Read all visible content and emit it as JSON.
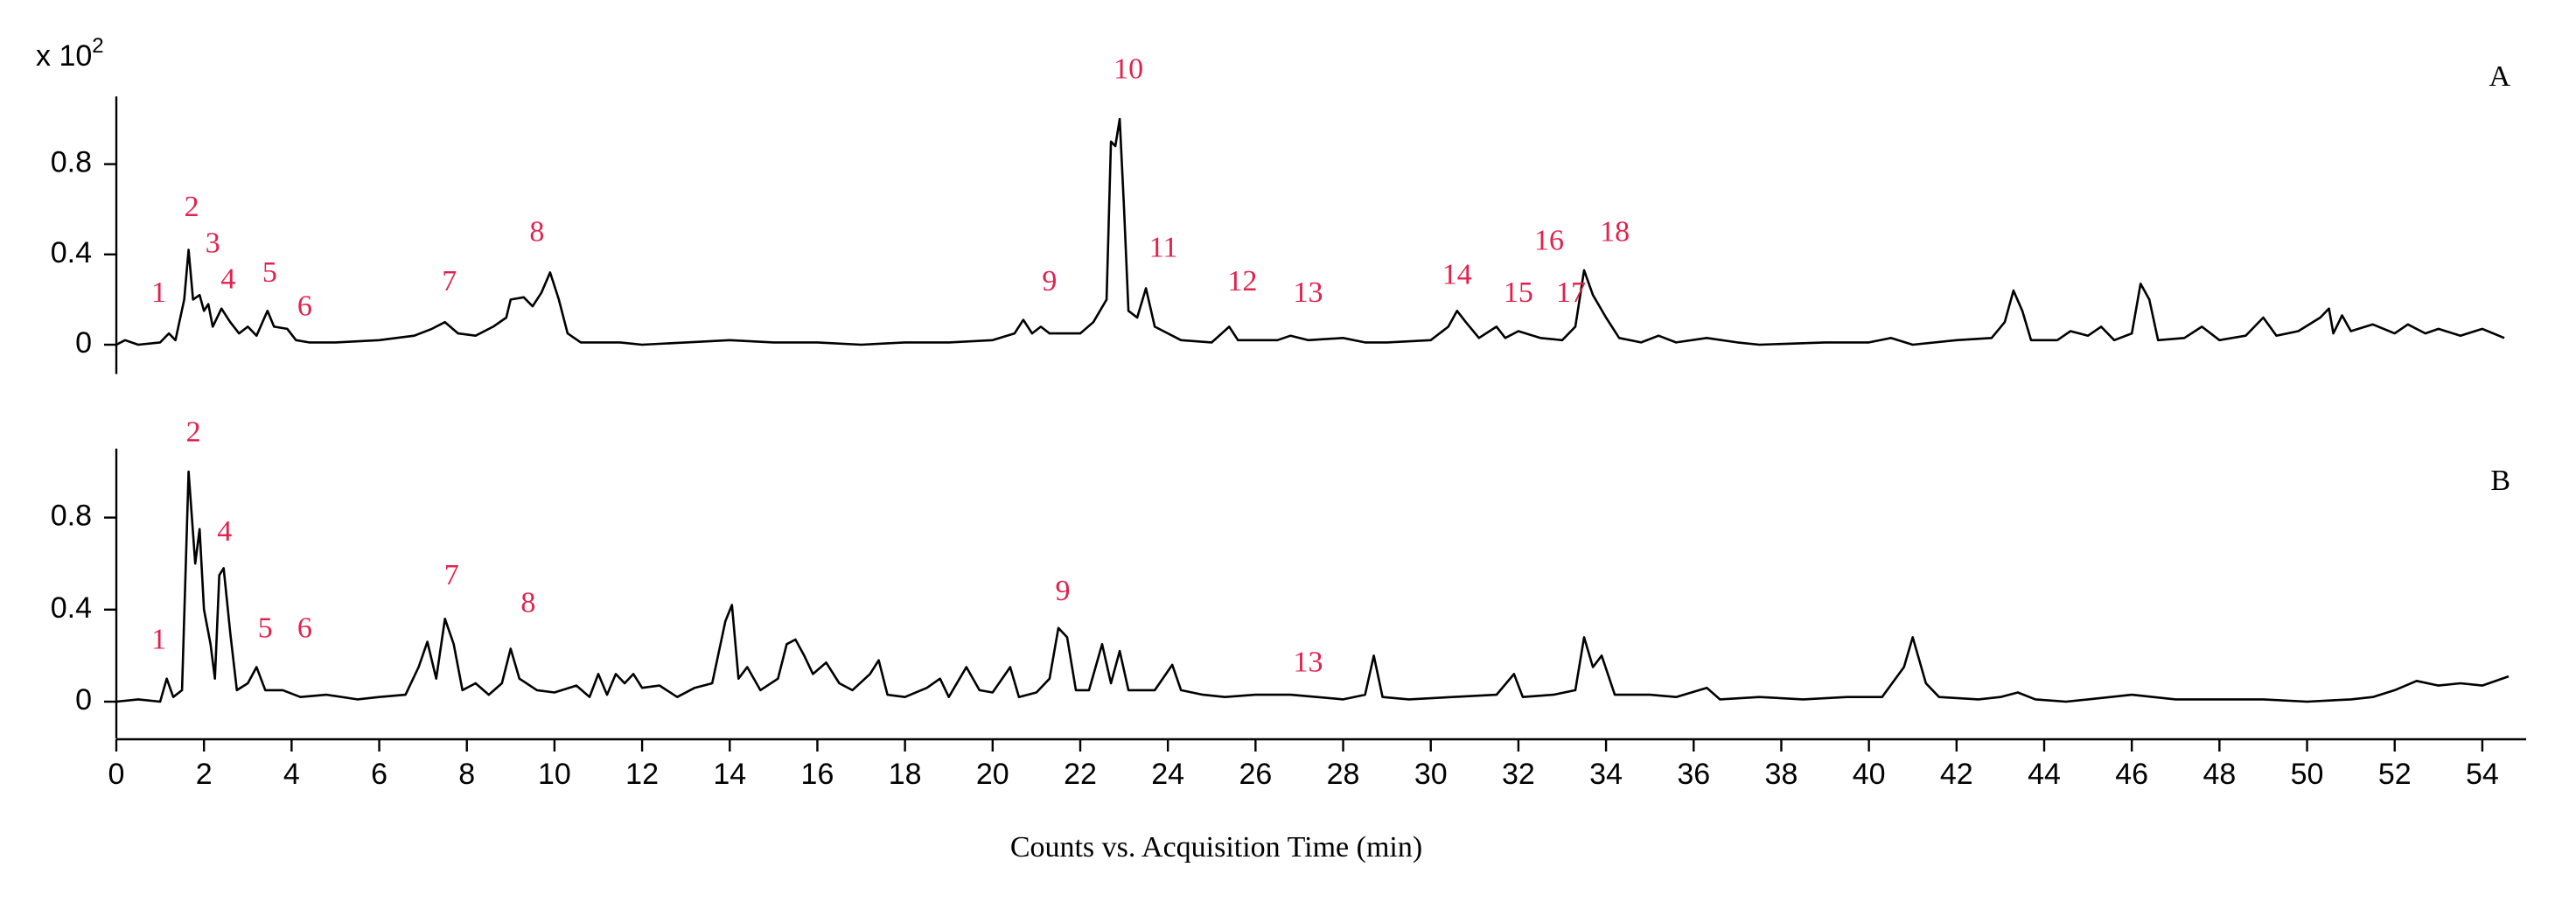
{
  "chart_data": [
    {
      "type": "line",
      "panel_label": "A",
      "y_scale_label": "x 10",
      "y_scale_exponent": "2",
      "color": "#000000",
      "annotation_color": "#e0234e",
      "xlim": [
        0,
        55
      ],
      "ylim": [
        -0.13,
        1.1
      ],
      "yticks": [
        0,
        0.4,
        0.8
      ],
      "x": [
        0,
        0.2,
        0.5,
        1.0,
        1.2,
        1.35,
        1.55,
        1.65,
        1.75,
        1.9,
        2.0,
        2.1,
        2.2,
        2.4,
        2.6,
        2.8,
        3.0,
        3.2,
        3.45,
        3.6,
        3.9,
        4.1,
        4.4,
        5,
        6,
        6.8,
        7.2,
        7.5,
        7.8,
        8.2,
        8.6,
        8.9,
        9.0,
        9.3,
        9.5,
        9.7,
        9.9,
        10.1,
        10.3,
        10.6,
        11.5,
        12,
        13,
        14,
        15,
        16,
        17,
        18,
        19,
        20,
        20.5,
        20.7,
        20.9,
        21.1,
        21.3,
        21.6,
        22,
        22.3,
        22.6,
        22.7,
        22.8,
        22.9,
        23.0,
        23.1,
        23.3,
        23.5,
        23.7,
        24,
        24.3,
        25,
        25.4,
        25.6,
        26.5,
        26.8,
        27.2,
        28,
        28.5,
        29,
        30,
        30.4,
        30.6,
        30.8,
        31.1,
        31.5,
        31.7,
        32,
        32.5,
        33,
        33.3,
        33.5,
        33.7,
        34,
        34.3,
        34.8,
        35.2,
        35.6,
        36.3,
        37,
        37.5,
        39,
        40,
        40.5,
        41,
        42,
        42.8,
        43.1,
        43.3,
        43.5,
        43.7,
        44.3,
        44.6,
        45,
        45.3,
        45.6,
        46,
        46.2,
        46.4,
        46.6,
        47.2,
        47.6,
        48,
        48.6,
        49,
        49.3,
        49.8,
        50.3,
        50.5,
        50.6,
        50.8,
        51,
        51.5,
        52,
        52.3,
        52.7,
        53,
        53.5,
        54,
        54.5
      ],
      "values": [
        0,
        0.02,
        0,
        0.01,
        0.05,
        0.02,
        0.2,
        0.42,
        0.2,
        0.22,
        0.15,
        0.18,
        0.08,
        0.16,
        0.1,
        0.05,
        0.08,
        0.04,
        0.15,
        0.08,
        0.07,
        0.02,
        0.01,
        0.01,
        0.02,
        0.04,
        0.07,
        0.1,
        0.05,
        0.04,
        0.08,
        0.12,
        0.2,
        0.21,
        0.17,
        0.23,
        0.32,
        0.2,
        0.05,
        0.01,
        0.01,
        0,
        0.01,
        0.02,
        0.01,
        0.01,
        0,
        0.01,
        0.01,
        0.02,
        0.05,
        0.11,
        0.05,
        0.08,
        0.05,
        0.05,
        0.05,
        0.1,
        0.2,
        0.9,
        0.88,
        1.0,
        0.6,
        0.15,
        0.12,
        0.25,
        0.08,
        0.05,
        0.02,
        0.01,
        0.08,
        0.02,
        0.02,
        0.04,
        0.02,
        0.03,
        0.01,
        0.01,
        0.02,
        0.08,
        0.15,
        0.1,
        0.03,
        0.08,
        0.03,
        0.06,
        0.03,
        0.02,
        0.08,
        0.33,
        0.22,
        0.12,
        0.03,
        0.01,
        0.04,
        0.01,
        0.03,
        0.01,
        0,
        0.01,
        0.01,
        0.03,
        0,
        0.02,
        0.03,
        0.1,
        0.24,
        0.15,
        0.02,
        0.02,
        0.06,
        0.04,
        0.08,
        0.02,
        0.05,
        0.27,
        0.2,
        0.02,
        0.03,
        0.08,
        0.02,
        0.04,
        0.12,
        0.04,
        0.06,
        0.12,
        0.16,
        0.05,
        0.13,
        0.06,
        0.09,
        0.05,
        0.09,
        0.05,
        0.07,
        0.04,
        0.07,
        0.03
      ],
      "annotations": [
        {
          "label": "1",
          "x": 0.97,
          "y": 0.22
        },
        {
          "label": "2",
          "x": 1.72,
          "y": 0.6
        },
        {
          "label": "3",
          "x": 2.2,
          "y": 0.44
        },
        {
          "label": "4",
          "x": 2.55,
          "y": 0.28
        },
        {
          "label": "5",
          "x": 3.5,
          "y": 0.31
        },
        {
          "label": "6",
          "x": 4.3,
          "y": 0.16
        },
        {
          "label": "7",
          "x": 7.6,
          "y": 0.27
        },
        {
          "label": "8",
          "x": 9.6,
          "y": 0.49
        },
        {
          "label": "9",
          "x": 21.3,
          "y": 0.27
        },
        {
          "label": "10",
          "x": 23.1,
          "y": 1.21
        },
        {
          "label": "11",
          "x": 23.9,
          "y": 0.42
        },
        {
          "label": "12",
          "x": 25.7,
          "y": 0.27
        },
        {
          "label": "13",
          "x": 27.2,
          "y": 0.22
        },
        {
          "label": "14",
          "x": 30.6,
          "y": 0.3
        },
        {
          "label": "15",
          "x": 32.0,
          "y": 0.22
        },
        {
          "label": "16",
          "x": 32.7,
          "y": 0.45
        },
        {
          "label": "17",
          "x": 33.2,
          "y": 0.22
        },
        {
          "label": "18",
          "x": 34.2,
          "y": 0.49
        }
      ]
    },
    {
      "type": "line",
      "panel_label": "B",
      "color": "#000000",
      "annotation_color": "#e0234e",
      "xlim": [
        0,
        55
      ],
      "ylim": [
        -0.16,
        1.1
      ],
      "yticks": [
        0,
        0.4,
        0.8
      ],
      "xticks": [
        0,
        2,
        4,
        6,
        8,
        10,
        12,
        14,
        16,
        18,
        20,
        22,
        24,
        26,
        28,
        30,
        32,
        34,
        36,
        38,
        40,
        42,
        44,
        46,
        48,
        50,
        52,
        54
      ],
      "xlabel": "Counts vs. Acquisition Time (min)",
      "x": [
        0,
        0.5,
        1.0,
        1.15,
        1.3,
        1.5,
        1.65,
        1.8,
        1.9,
        2.0,
        2.15,
        2.25,
        2.35,
        2.45,
        2.6,
        2.75,
        3.0,
        3.2,
        3.4,
        3.8,
        4.2,
        4.8,
        5.5,
        6,
        6.6,
        6.9,
        7.1,
        7.3,
        7.5,
        7.7,
        7.9,
        8.2,
        8.5,
        8.8,
        9.0,
        9.2,
        9.6,
        10,
        10.5,
        10.8,
        11,
        11.2,
        11.4,
        11.6,
        11.8,
        12,
        12.4,
        12.8,
        13.2,
        13.6,
        13.9,
        14.05,
        14.2,
        14.4,
        14.7,
        15.1,
        15.3,
        15.5,
        15.7,
        15.9,
        16.2,
        16.5,
        16.8,
        17.2,
        17.4,
        17.6,
        18,
        18.5,
        18.8,
        19.0,
        19.4,
        19.7,
        20,
        20.4,
        20.6,
        21,
        21.3,
        21.5,
        21.7,
        21.9,
        22.2,
        22.5,
        22.7,
        22.9,
        23.1,
        23.7,
        24.1,
        24.3,
        24.8,
        25.3,
        26,
        26.8,
        27.4,
        28,
        28.5,
        28.7,
        28.9,
        29.5,
        30.5,
        31.5,
        31.9,
        32.1,
        32.8,
        33.3,
        33.5,
        33.7,
        33.9,
        34.2,
        35,
        35.6,
        36.3,
        36.6,
        37.5,
        38.5,
        39.5,
        40.3,
        40.8,
        41,
        41.3,
        41.6,
        42.5,
        43,
        43.4,
        43.8,
        44.5,
        45,
        46,
        47,
        48,
        49,
        50,
        51,
        51.5,
        52,
        52.5,
        53,
        53.5,
        54,
        54.6
      ],
      "values": [
        0,
        0.01,
        0,
        0.1,
        0.02,
        0.05,
        1.0,
        0.6,
        0.75,
        0.4,
        0.25,
        0.1,
        0.55,
        0.58,
        0.3,
        0.05,
        0.08,
        0.15,
        0.05,
        0.05,
        0.02,
        0.03,
        0.01,
        0.02,
        0.03,
        0.15,
        0.26,
        0.1,
        0.36,
        0.25,
        0.05,
        0.08,
        0.03,
        0.08,
        0.23,
        0.1,
        0.05,
        0.04,
        0.07,
        0.02,
        0.12,
        0.03,
        0.12,
        0.08,
        0.12,
        0.06,
        0.07,
        0.02,
        0.06,
        0.08,
        0.35,
        0.42,
        0.1,
        0.15,
        0.05,
        0.1,
        0.25,
        0.27,
        0.2,
        0.12,
        0.17,
        0.08,
        0.05,
        0.12,
        0.18,
        0.03,
        0.02,
        0.06,
        0.1,
        0.02,
        0.15,
        0.05,
        0.04,
        0.15,
        0.02,
        0.04,
        0.1,
        0.32,
        0.28,
        0.05,
        0.05,
        0.25,
        0.08,
        0.22,
        0.05,
        0.05,
        0.16,
        0.05,
        0.03,
        0.02,
        0.03,
        0.03,
        0.02,
        0.01,
        0.03,
        0.2,
        0.02,
        0.01,
        0.02,
        0.03,
        0.12,
        0.02,
        0.03,
        0.05,
        0.28,
        0.15,
        0.2,
        0.03,
        0.03,
        0.02,
        0.06,
        0.01,
        0.02,
        0.01,
        0.02,
        0.02,
        0.15,
        0.28,
        0.08,
        0.02,
        0.01,
        0.02,
        0.04,
        0.01,
        0,
        0.01,
        0.03,
        0.01,
        0.01,
        0.01,
        0,
        0.01,
        0.02,
        0.05,
        0.09,
        0.07,
        0.08,
        0.07,
        0.11
      ],
      "annotations": [
        {
          "label": "1",
          "x": 0.97,
          "y": 0.26
        },
        {
          "label": "2",
          "x": 1.76,
          "y": 1.16
        },
        {
          "label": "4",
          "x": 2.47,
          "y": 0.73
        },
        {
          "label": "5",
          "x": 3.4,
          "y": 0.31
        },
        {
          "label": "6",
          "x": 4.3,
          "y": 0.31
        },
        {
          "label": "7",
          "x": 7.65,
          "y": 0.54
        },
        {
          "label": "8",
          "x": 9.4,
          "y": 0.42
        },
        {
          "label": "9",
          "x": 21.6,
          "y": 0.47
        },
        {
          "label": "13",
          "x": 27.2,
          "y": 0.16
        }
      ]
    }
  ]
}
